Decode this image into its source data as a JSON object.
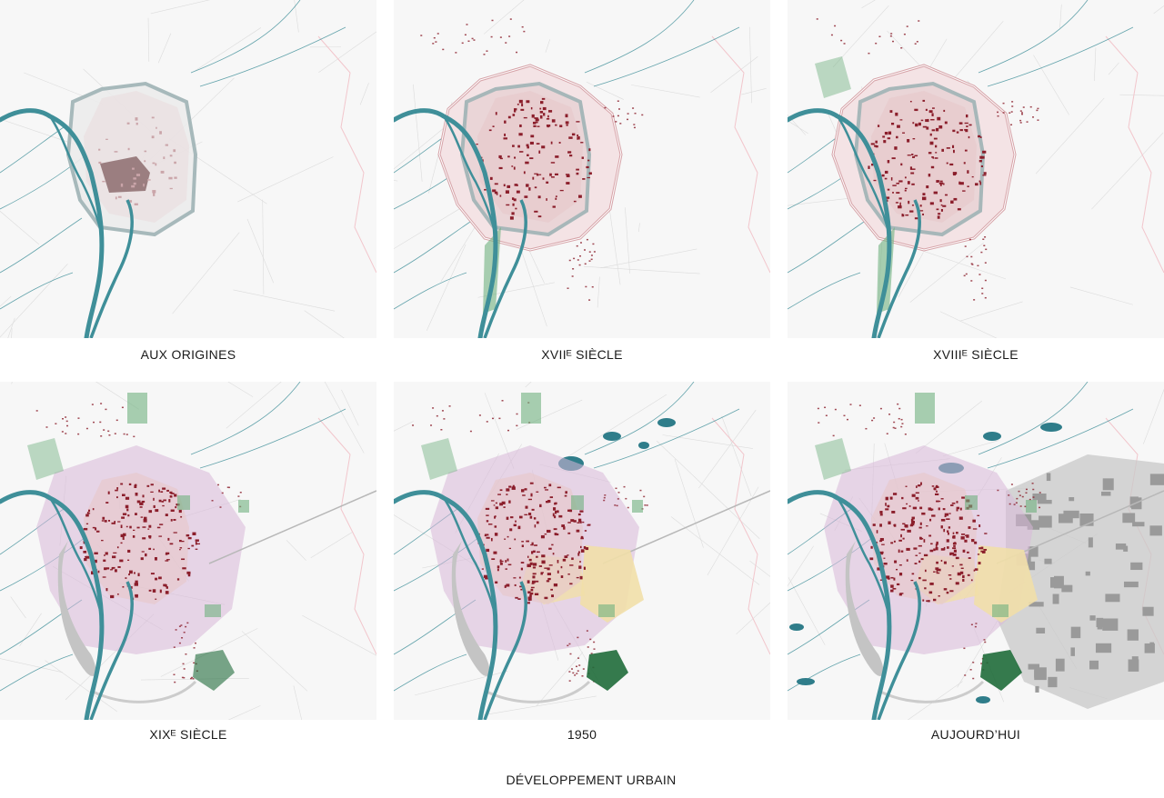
{
  "title": "DÉVELOPPEMENT URBAIN",
  "maps": [
    {
      "id": "origines",
      "label": "AUX ORIGINES",
      "stage": 0
    },
    {
      "id": "xvii",
      "label": "XVIIᴱ SIÈCLE",
      "stage": 1
    },
    {
      "id": "xviii",
      "label": "XVIIIᴱ SIÈCLE",
      "stage": 2
    },
    {
      "id": "xix",
      "label": "XIXᴱ SIÈCLE",
      "stage": 3
    },
    {
      "id": "y1950",
      "label": "1950",
      "stage": 4
    },
    {
      "id": "aujourdhui",
      "label": "AUJOURD’HUI",
      "stage": 5
    }
  ],
  "colors": {
    "background": "#f7f7f7",
    "river": "#3f8f99",
    "historic_core": "#8b1e2b",
    "core_fill": "#e7c9cc",
    "fortification": "#d6a3a8",
    "rampart_old": "#9fb3b5",
    "green_spaces": "#6fb07f",
    "dark_green": "#1f6b3a",
    "suburbs_purple": "#d9b8d9",
    "suburbs_yellow": "#f1dfa8",
    "modern_grey": "#c8c8c8",
    "water_bodies": "#2f7d8a"
  }
}
